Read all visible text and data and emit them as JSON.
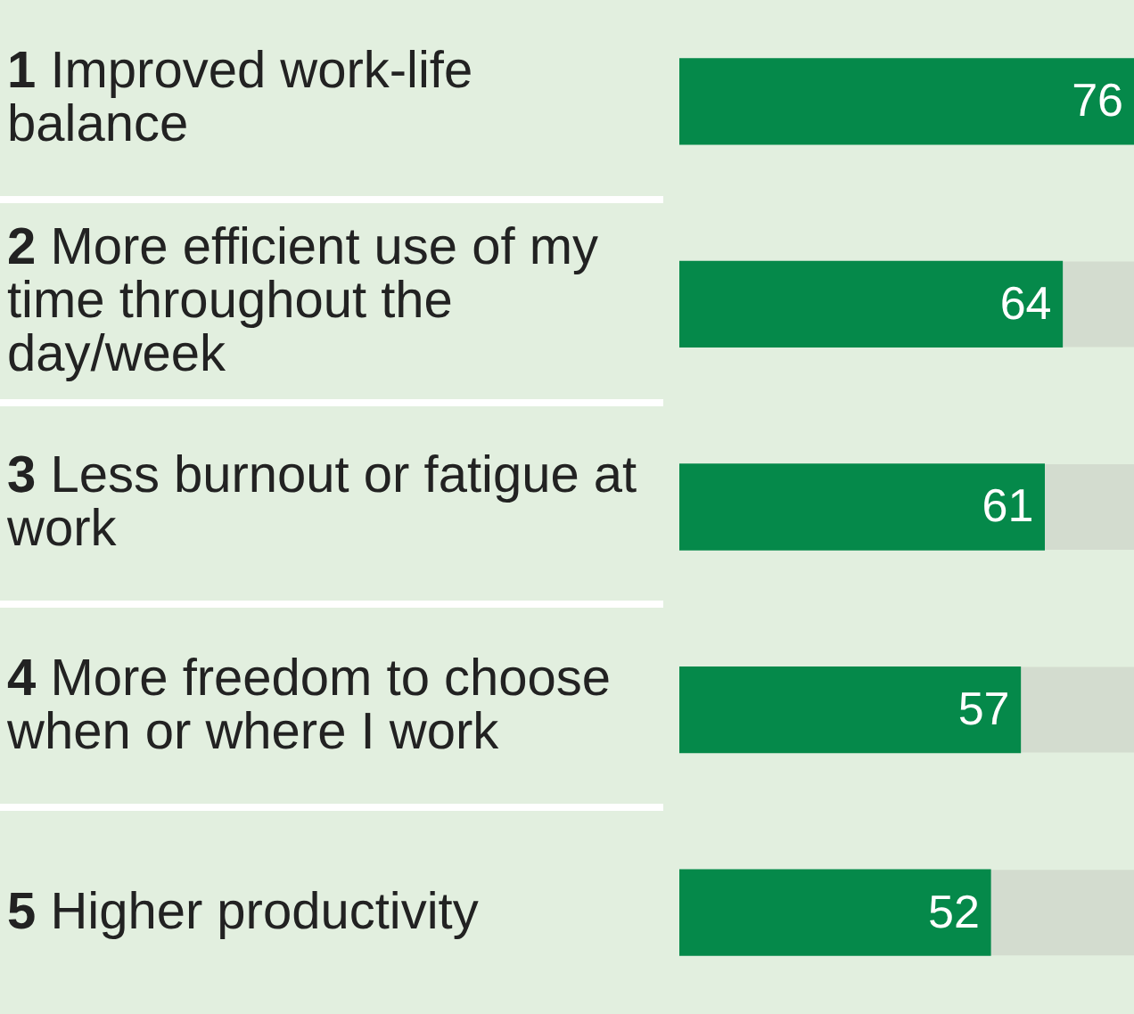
{
  "chart_data": {
    "type": "bar",
    "orientation": "horizontal",
    "categories": [
      "1 Improved work-life balance",
      "2 More efficient use of my time throughout the day/week",
      "3 Less burnout or fatigue at work",
      "4 More freedom to choose when or where I work",
      "5 Higher productivity"
    ],
    "values": [
      76,
      64,
      61,
      57,
      52
    ],
    "color": "#05894a",
    "data_labels": true,
    "legend": false,
    "tick_labels": "y"
  }
}
